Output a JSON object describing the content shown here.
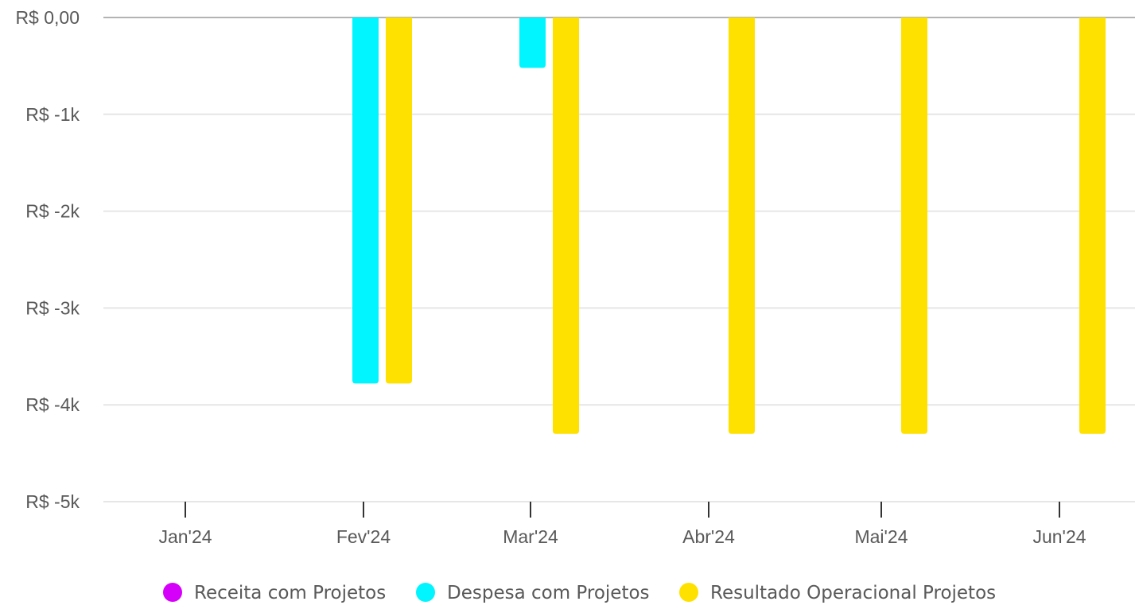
{
  "chart_data": {
    "type": "bar",
    "title": "",
    "xlabel": "",
    "ylabel": "",
    "categories": [
      "Jan'24",
      "Fev'24",
      "Mar'24",
      "Abr'24",
      "Mai'24",
      "Jun'24"
    ],
    "series": [
      {
        "name": "Receita com Projetos",
        "color": "#D500F9",
        "values": [
          0,
          0,
          0,
          0,
          0,
          0
        ]
      },
      {
        "name": "Despesa com Projetos",
        "color": "#00F5FF",
        "values": [
          0,
          -3780,
          -520,
          0,
          0,
          0
        ]
      },
      {
        "name": "Resultado Operacional Projetos",
        "color": "#FFE100",
        "values": [
          0,
          -3780,
          -4300,
          -4300,
          -4300,
          -4300
        ]
      }
    ],
    "ylim": [
      -5000,
      0
    ],
    "yticks": [
      {
        "value": 0,
        "label": "R$ 0,00"
      },
      {
        "value": -1000,
        "label": "R$ -1k"
      },
      {
        "value": -2000,
        "label": "R$ -2k"
      },
      {
        "value": -3000,
        "label": "R$ -3k"
      },
      {
        "value": -4000,
        "label": "R$ -4k"
      },
      {
        "value": -5000,
        "label": "R$ -5k"
      }
    ],
    "grid": true,
    "legend_position": "bottom"
  }
}
